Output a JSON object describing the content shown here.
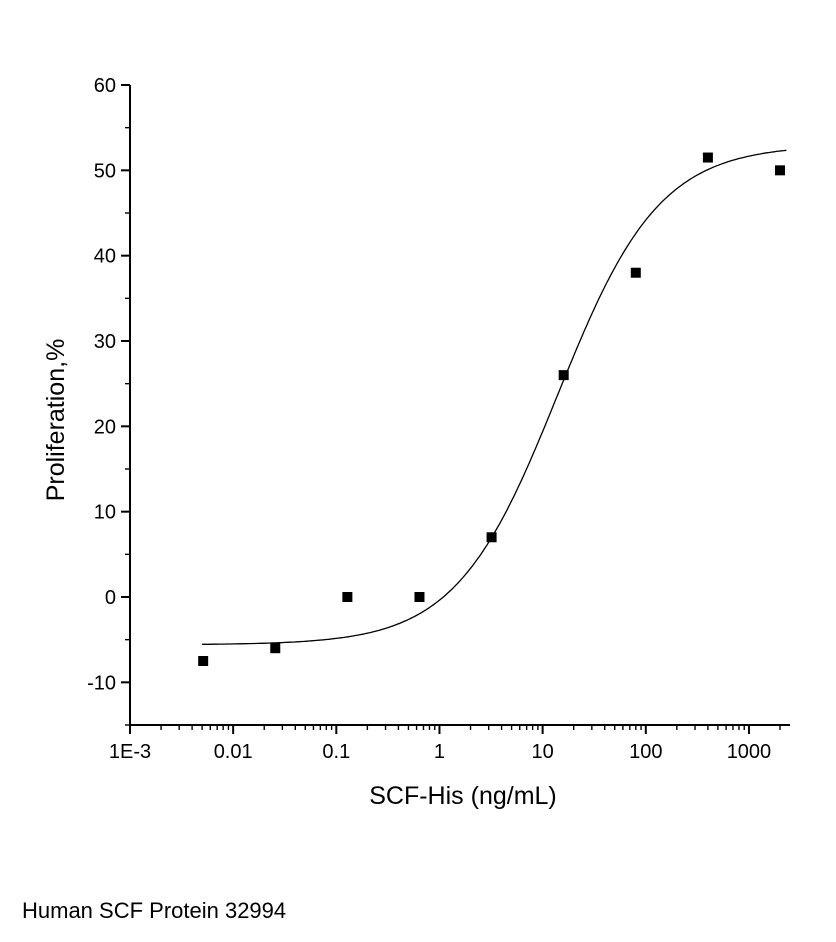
{
  "caption": "Human SCF Protein 32994",
  "chart_data": {
    "type": "scatter",
    "title": "",
    "xlabel": "SCF-His (ng/mL)",
    "ylabel": "Proliferation,%",
    "x_scale": "log",
    "xlim": [
      0.001,
      2500
    ],
    "ylim": [
      -15,
      60
    ],
    "grid": false,
    "legend": false,
    "marker": "square",
    "marker_size": 10,
    "color": "#000000",
    "x_ticks": [
      {
        "value": 0.001,
        "label": "1E-3"
      },
      {
        "value": 0.01,
        "label": "0.01"
      },
      {
        "value": 0.1,
        "label": "0.1"
      },
      {
        "value": 1,
        "label": "1"
      },
      {
        "value": 10,
        "label": "10"
      },
      {
        "value": 100,
        "label": "100"
      },
      {
        "value": 1000,
        "label": "1000"
      }
    ],
    "y_ticks": [
      -10,
      0,
      10,
      20,
      30,
      40,
      50,
      60
    ],
    "points": [
      [
        0.00512,
        -7.5
      ],
      [
        0.0256,
        -6
      ],
      [
        0.128,
        0
      ],
      [
        0.64,
        0
      ],
      [
        3.2,
        7
      ],
      [
        16,
        26
      ],
      [
        80,
        38
      ],
      [
        400,
        51.5
      ],
      [
        2000,
        50
      ]
    ],
    "fit_curve": {
      "model": "4PL",
      "bottom": -5.6,
      "top": 53,
      "ec50": 14,
      "hill": 0.88,
      "x_start": 0.005,
      "x_end": 2300
    }
  }
}
